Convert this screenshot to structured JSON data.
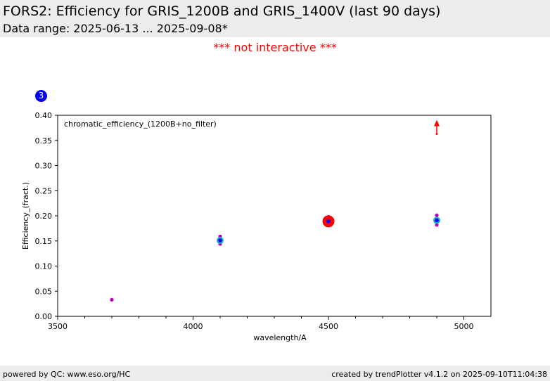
{
  "header": {
    "title": "FORS2: Efficiency for GRIS_1200B and GRIS_1400V (last 90 days)",
    "subtitle": "Data range: 2025-06-13 ... 2025-09-08*"
  },
  "notice": "*** not interactive ***",
  "badge": "3",
  "footer": {
    "left": "powered by QC: www.eso.org/HC",
    "right": "created by trendPlotter v4.1.2 on 2025-09-10T11:04:38"
  },
  "chart_data": {
    "type": "scatter",
    "annotation": "chromatic_efficiency_(1200B+no_filter)",
    "xlabel": "wavelength/A",
    "ylabel": "Efficiency_(fract.)",
    "xlim": [
      3500,
      5100
    ],
    "ylim": [
      0.0,
      0.4
    ],
    "xticks": [
      3500,
      4000,
      4500,
      5000
    ],
    "xtick_labels": [
      "3500",
      "4000",
      "4500",
      "5000"
    ],
    "yticks": [
      0.0,
      0.05,
      0.1,
      0.15,
      0.2,
      0.25,
      0.3,
      0.35,
      0.4
    ],
    "ytick_labels": [
      "0.00",
      "0.05",
      "0.10",
      "0.15",
      "0.20",
      "0.25",
      "0.30",
      "0.35",
      "0.40"
    ],
    "grid": false,
    "colors": {
      "magenta": "#c000c0",
      "cyan": "#20b0c0",
      "red": "#ff0000",
      "blue": "#0000ff"
    },
    "series": [
      {
        "marker": "magenta-dot",
        "color": "#c000c0",
        "points": [
          [
            3700,
            0.033
          ],
          [
            4100,
            0.159
          ],
          [
            4100,
            0.144
          ],
          [
            4500,
            0.198
          ],
          [
            4500,
            0.181
          ],
          [
            4900,
            0.201
          ],
          [
            4900,
            0.182
          ]
        ]
      },
      {
        "marker": "cyan-circle",
        "color": "#20b0c0",
        "points": [
          [
            4100,
            0.151
          ],
          [
            4900,
            0.191
          ]
        ]
      },
      {
        "marker": "red-big-circle",
        "color": "#ff0000",
        "points": [
          [
            4500,
            0.189
          ]
        ]
      },
      {
        "marker": "blue-circle",
        "color": "#0000ff",
        "points": [
          [
            4500,
            0.189
          ],
          [
            4100,
            0.151
          ],
          [
            4900,
            0.191
          ]
        ]
      },
      {
        "marker": "red-arrow-up",
        "color": "#ff0000",
        "points": [
          [
            4900,
            0.363
          ]
        ]
      }
    ]
  }
}
